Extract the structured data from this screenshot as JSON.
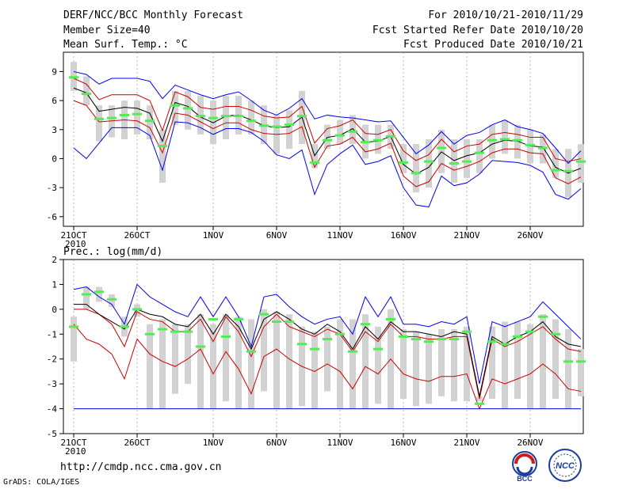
{
  "header": {
    "title": "DERF/NCC/BCC Monthly Forecast",
    "member_size": "Member Size=40",
    "variable": "Mean Surf. Temp.: °C",
    "forecast_period": "For 2010/10/21-2010/11/29",
    "started_refer": "Fcst Started Refer Date 2010/10/20",
    "produced": "Fcst Produced Date 2010/10/21"
  },
  "footer": {
    "url": "http://cmdp.ncc.cma.gov.cn",
    "credit": "GrADS: COLA/IGES",
    "logo_left": "BCC",
    "logo_right": "NCC"
  },
  "colors": {
    "box": "#d2d2d2",
    "median": "#4ef04e",
    "mean": "#000000",
    "spread": "#cc0000",
    "envelope": "#0000ee"
  },
  "chart_data": [
    {
      "type": "box",
      "title": "Mean Surf. Temp.: °C",
      "ylim": [
        -7,
        11
      ],
      "yticks": [
        -6,
        -3,
        0,
        3,
        6,
        9
      ],
      "xticks": [
        {
          "day": 0,
          "label": "21OCT",
          "sub": "2010"
        },
        {
          "day": 5,
          "label": "26OCT"
        },
        {
          "day": 11,
          "label": "1NOV"
        },
        {
          "day": 16,
          "label": "6NOV"
        },
        {
          "day": 21,
          "label": "11NOV"
        },
        {
          "day": 26,
          "label": "16NOV"
        },
        {
          "day": 31,
          "label": "21NOV"
        },
        {
          "day": 36,
          "label": "26NOV"
        }
      ],
      "series": {
        "box_low": [
          7.0,
          5.5,
          1.8,
          2.2,
          2.0,
          2.5,
          2.0,
          -2.5,
          3.5,
          3.0,
          2.5,
          1.5,
          2.0,
          2.5,
          2.5,
          1.5,
          0.5,
          1.0,
          1.5,
          -1.0,
          1.0,
          1.5,
          1.5,
          0.0,
          0.5,
          1.0,
          -1.5,
          -3.5,
          -3.0,
          -1.5,
          -2.5,
          -2.0,
          -1.5,
          0.0,
          0.5,
          0.0,
          -0.5,
          -0.5,
          -2.0,
          -4.0,
          -2.5
        ],
        "box_high": [
          10.0,
          8.5,
          5.5,
          5.5,
          6.0,
          6.0,
          5.5,
          3.0,
          7.0,
          7.0,
          6.5,
          6.0,
          6.5,
          6.5,
          6.0,
          5.5,
          4.5,
          5.0,
          7.0,
          1.5,
          3.5,
          4.0,
          4.5,
          3.5,
          3.5,
          3.5,
          1.5,
          1.5,
          2.0,
          3.0,
          2.0,
          2.0,
          2.0,
          3.5,
          4.0,
          3.5,
          3.0,
          2.5,
          1.0,
          1.0,
          1.5
        ],
        "median": [
          8.4,
          6.7,
          4.1,
          4.2,
          4.5,
          4.6,
          3.9,
          1.3,
          5.5,
          5.2,
          4.4,
          4.2,
          4.4,
          4.4,
          3.9,
          3.4,
          3.3,
          3.5,
          4.4,
          -0.4,
          1.9,
          2.4,
          2.8,
          1.7,
          1.9,
          2.3,
          -0.4,
          -1.5,
          -0.3,
          1.1,
          -0.5,
          -0.3,
          0.6,
          1.9,
          2.0,
          1.9,
          1.4,
          1.1,
          -1.2,
          -1.3,
          -0.3
        ],
        "mean": [
          7.3,
          6.8,
          4.9,
          5.1,
          5.3,
          5.2,
          4.7,
          1.8,
          5.8,
          5.4,
          4.3,
          3.7,
          4.4,
          4.5,
          4.0,
          3.4,
          3.2,
          3.3,
          4.3,
          0.3,
          2.2,
          2.4,
          3.1,
          1.7,
          1.8,
          2.3,
          -0.6,
          -1.6,
          -0.9,
          0.7,
          -0.2,
          0.3,
          0.6,
          1.5,
          1.9,
          1.8,
          1.3,
          1.2,
          -0.9,
          -1.5,
          -1.0
        ],
        "spread_high": [
          8.3,
          7.7,
          6.1,
          6.6,
          6.6,
          6.6,
          6.0,
          2.9,
          6.9,
          6.4,
          5.3,
          5.1,
          5.4,
          5.4,
          5.0,
          4.4,
          4.2,
          4.3,
          5.4,
          1.6,
          3.1,
          3.4,
          4.0,
          2.6,
          2.5,
          3.0,
          0.8,
          -0.2,
          0.4,
          2.0,
          0.7,
          1.3,
          1.5,
          2.5,
          2.7,
          2.5,
          2.2,
          2.2,
          0.0,
          -0.3,
          0.0
        ],
        "spread_low": [
          6.0,
          5.5,
          3.8,
          3.9,
          4.0,
          3.9,
          3.2,
          0.6,
          4.7,
          4.5,
          3.8,
          3.1,
          3.7,
          3.7,
          3.0,
          2.6,
          2.5,
          2.6,
          3.3,
          -0.9,
          1.3,
          1.5,
          2.2,
          0.7,
          1.0,
          1.6,
          -1.8,
          -2.9,
          -2.4,
          -0.5,
          -1.2,
          -0.8,
          -0.3,
          0.6,
          1.0,
          1.0,
          0.6,
          0.5,
          -2.0,
          -2.6,
          -1.9
        ],
        "env_high": [
          9.0,
          8.7,
          7.7,
          8.3,
          8.3,
          8.3,
          8.0,
          6.2,
          7.6,
          7.1,
          6.6,
          6.2,
          6.6,
          6.9,
          6.0,
          5.0,
          4.5,
          5.2,
          6.2,
          4.1,
          4.5,
          4.3,
          4.2,
          4.0,
          3.8,
          3.9,
          2.2,
          0.5,
          1.4,
          2.8,
          1.5,
          2.4,
          2.7,
          3.5,
          4.0,
          3.3,
          3.0,
          2.6,
          1.1,
          -0.5,
          0.8
        ],
        "env_high_note": "upper envelope",
        "env_low": [
          1.1,
          0.0,
          1.6,
          3.2,
          3.2,
          3.2,
          2.4,
          -1.2,
          3.8,
          3.7,
          3.2,
          2.5,
          3.1,
          3.1,
          2.7,
          1.8,
          0.4,
          0.0,
          0.9,
          -3.7,
          -0.6,
          0.5,
          1.4,
          -0.6,
          -0.3,
          0.3,
          -3.0,
          -4.8,
          -5.0,
          -1.8,
          -2.8,
          -2.5,
          -1.6,
          -0.2,
          -0.3,
          -0.4,
          -0.7,
          -1.4,
          -3.7,
          -4.2,
          -3.1
        ]
      }
    },
    {
      "type": "box",
      "title": "Prec.: log(mm/d)",
      "ylim": [
        -5,
        2
      ],
      "yticks": [
        -5,
        -4,
        -3,
        -2,
        -1,
        0,
        1,
        2
      ],
      "xticks": [
        {
          "day": 0,
          "label": "21OCT",
          "sub": "2010"
        },
        {
          "day": 5,
          "label": "26OCT"
        },
        {
          "day": 11,
          "label": "1NOV"
        },
        {
          "day": 16,
          "label": "6NOV"
        },
        {
          "day": 21,
          "label": "11NOV"
        },
        {
          "day": 26,
          "label": "16NOV"
        },
        {
          "day": 31,
          "label": "21NOV"
        },
        {
          "day": 36,
          "label": "26NOV"
        }
      ],
      "series": {
        "box_low": [
          -2.1,
          0.0,
          0.3,
          0.1,
          -1.1,
          -0.3,
          -4.0,
          -4.0,
          -3.4,
          -3.0,
          -4.0,
          -4.0,
          -3.7,
          -4.0,
          -4.0,
          -3.3,
          -4.0,
          -4.0,
          -3.9,
          -4.0,
          -3.3,
          -4.0,
          -4.0,
          -4.0,
          -3.8,
          -4.0,
          -3.6,
          -3.9,
          -3.8,
          -3.5,
          -3.7,
          -3.7,
          -3.7,
          -3.6,
          -4.0,
          -3.6,
          -4.0,
          -4.0,
          -3.6,
          -4.0,
          -3.5
        ],
        "box_high": [
          -0.3,
          0.9,
          0.9,
          0.6,
          -0.3,
          0.2,
          -0.6,
          -0.4,
          -0.6,
          -0.6,
          -0.2,
          -0.6,
          -0.2,
          -0.3,
          -0.4,
          0.0,
          -0.1,
          -0.2,
          -0.7,
          -0.9,
          -0.7,
          -0.4,
          -0.4,
          -0.2,
          -0.7,
          0.0,
          -0.8,
          -0.9,
          -1.0,
          -0.8,
          -0.8,
          -0.7,
          -3.5,
          -0.7,
          -0.5,
          -0.5,
          -0.6,
          -0.2,
          -0.4,
          -0.8,
          -1.6
        ],
        "median": [
          -0.7,
          0.6,
          0.7,
          0.4,
          -0.7,
          0.0,
          -1.0,
          -0.8,
          -0.9,
          -0.9,
          -1.5,
          -0.4,
          -1.1,
          -0.4,
          -1.7,
          -0.2,
          -0.5,
          -0.5,
          -1.4,
          -1.6,
          -1.2,
          -1.0,
          -1.7,
          -0.6,
          -1.6,
          -0.4,
          -1.1,
          -1.2,
          -1.3,
          -1.2,
          -1.2,
          -0.9,
          -3.8,
          -1.3,
          -1.4,
          -1.1,
          -0.9,
          -0.3,
          -1.0,
          -2.1,
          -2.1
        ],
        "mean": [
          0.2,
          0.2,
          -0.2,
          -0.5,
          -0.8,
          0.0,
          -0.2,
          -0.3,
          -0.6,
          -0.7,
          -0.2,
          -1.0,
          -0.2,
          -0.7,
          -1.6,
          -0.4,
          -0.1,
          -0.4,
          -0.8,
          -1.0,
          -0.6,
          -0.9,
          -1.6,
          -0.7,
          -1.2,
          -0.5,
          -0.9,
          -0.9,
          -1.0,
          -1.1,
          -0.9,
          -1.0,
          -3.5,
          -1.1,
          -1.4,
          -1.1,
          -0.9,
          -0.5,
          -1.1,
          -1.4,
          -1.5
        ],
        "spread_high": [
          0.0,
          0.0,
          -0.2,
          -0.6,
          -1.5,
          -0.1,
          -0.4,
          -0.5,
          -0.9,
          -0.9,
          -0.4,
          -1.3,
          -0.3,
          -0.9,
          -1.9,
          -0.7,
          -0.2,
          -0.7,
          -0.9,
          -1.1,
          -0.8,
          -1.0,
          -1.7,
          -0.9,
          -1.3,
          -0.6,
          -1.1,
          -1.1,
          -1.2,
          -1.2,
          -1.1,
          -1.1,
          -3.6,
          -1.2,
          -1.5,
          -1.3,
          -1.0,
          -0.7,
          -1.2,
          -1.6,
          -1.7
        ],
        "spread_low": [
          -0.6,
          -1.2,
          -1.4,
          -1.8,
          -2.8,
          -1.2,
          -1.8,
          -2.1,
          -2.3,
          -2.0,
          -1.6,
          -2.6,
          -1.7,
          -2.4,
          -3.4,
          -1.9,
          -1.6,
          -2.0,
          -2.3,
          -2.5,
          -2.2,
          -2.5,
          -3.2,
          -2.3,
          -2.6,
          -2.0,
          -2.6,
          -2.8,
          -2.9,
          -2.7,
          -2.7,
          -2.6,
          -4.0,
          -2.8,
          -3.0,
          -2.8,
          -2.6,
          -2.2,
          -2.6,
          -3.2,
          -3.3
        ],
        "env_high": [
          0.8,
          0.9,
          0.5,
          0.2,
          -0.6,
          1.0,
          0.5,
          0.2,
          -0.1,
          -0.3,
          0.5,
          -0.3,
          0.5,
          -0.3,
          -1.5,
          0.5,
          0.6,
          0.1,
          -0.3,
          -0.6,
          -0.4,
          -0.3,
          -1.0,
          0.5,
          -0.3,
          0.5,
          -0.6,
          -0.6,
          -0.7,
          -0.5,
          -0.6,
          -0.3,
          -3.0,
          -0.5,
          -0.7,
          -0.5,
          -0.3,
          0.3,
          -0.2,
          -0.7,
          -1.2
        ],
        "env_low": [
          -4.0,
          -4.0,
          -4.0,
          -4.0,
          -4.0,
          -4.0,
          -4.0,
          -4.0,
          -4.0,
          -4.0,
          -4.0,
          -4.0,
          -4.0,
          -4.0,
          -4.0,
          -4.0,
          -4.0,
          -4.0,
          -4.0,
          -4.0,
          -4.0,
          -4.0,
          -4.0,
          -4.0,
          -4.0,
          -4.0,
          -4.0,
          -4.0,
          -4.0,
          -4.0,
          -4.0,
          -4.0,
          -4.0,
          -4.0,
          -4.0,
          -4.0,
          -4.0,
          -4.0,
          -4.0,
          -4.0,
          -4.0
        ]
      }
    }
  ]
}
